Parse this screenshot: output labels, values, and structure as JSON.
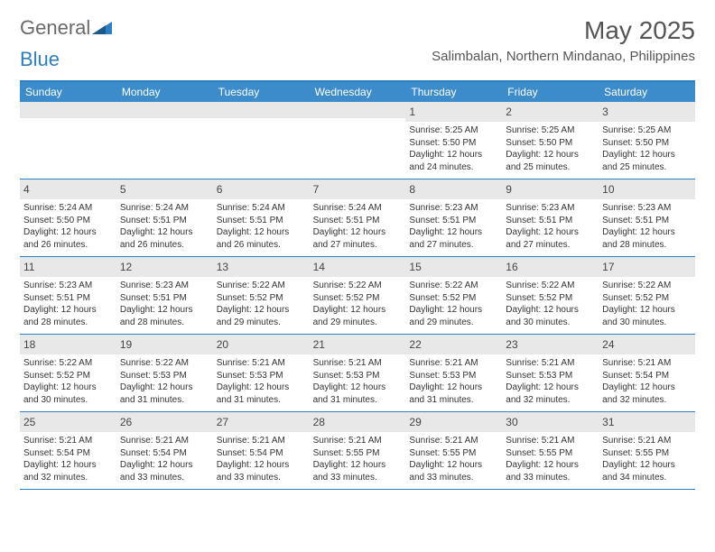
{
  "logo": {
    "text1": "General",
    "text2": "Blue"
  },
  "title": "May 2025",
  "location": "Salimbalan, Northern Mindanao, Philippines",
  "colors": {
    "header_bar": "#3c8ccc",
    "border": "#2d7fc1",
    "daynum_bg": "#e8e8e8",
    "text": "#333333",
    "title_text": "#555555"
  },
  "weekdays": [
    "Sunday",
    "Monday",
    "Tuesday",
    "Wednesday",
    "Thursday",
    "Friday",
    "Saturday"
  ],
  "weeks": [
    [
      null,
      null,
      null,
      null,
      {
        "n": "1",
        "sr": "5:25 AM",
        "ss": "5:50 PM",
        "dl": "12 hours and 24 minutes."
      },
      {
        "n": "2",
        "sr": "5:25 AM",
        "ss": "5:50 PM",
        "dl": "12 hours and 25 minutes."
      },
      {
        "n": "3",
        "sr": "5:25 AM",
        "ss": "5:50 PM",
        "dl": "12 hours and 25 minutes."
      }
    ],
    [
      {
        "n": "4",
        "sr": "5:24 AM",
        "ss": "5:50 PM",
        "dl": "12 hours and 26 minutes."
      },
      {
        "n": "5",
        "sr": "5:24 AM",
        "ss": "5:51 PM",
        "dl": "12 hours and 26 minutes."
      },
      {
        "n": "6",
        "sr": "5:24 AM",
        "ss": "5:51 PM",
        "dl": "12 hours and 26 minutes."
      },
      {
        "n": "7",
        "sr": "5:24 AM",
        "ss": "5:51 PM",
        "dl": "12 hours and 27 minutes."
      },
      {
        "n": "8",
        "sr": "5:23 AM",
        "ss": "5:51 PM",
        "dl": "12 hours and 27 minutes."
      },
      {
        "n": "9",
        "sr": "5:23 AM",
        "ss": "5:51 PM",
        "dl": "12 hours and 27 minutes."
      },
      {
        "n": "10",
        "sr": "5:23 AM",
        "ss": "5:51 PM",
        "dl": "12 hours and 28 minutes."
      }
    ],
    [
      {
        "n": "11",
        "sr": "5:23 AM",
        "ss": "5:51 PM",
        "dl": "12 hours and 28 minutes."
      },
      {
        "n": "12",
        "sr": "5:23 AM",
        "ss": "5:51 PM",
        "dl": "12 hours and 28 minutes."
      },
      {
        "n": "13",
        "sr": "5:22 AM",
        "ss": "5:52 PM",
        "dl": "12 hours and 29 minutes."
      },
      {
        "n": "14",
        "sr": "5:22 AM",
        "ss": "5:52 PM",
        "dl": "12 hours and 29 minutes."
      },
      {
        "n": "15",
        "sr": "5:22 AM",
        "ss": "5:52 PM",
        "dl": "12 hours and 29 minutes."
      },
      {
        "n": "16",
        "sr": "5:22 AM",
        "ss": "5:52 PM",
        "dl": "12 hours and 30 minutes."
      },
      {
        "n": "17",
        "sr": "5:22 AM",
        "ss": "5:52 PM",
        "dl": "12 hours and 30 minutes."
      }
    ],
    [
      {
        "n": "18",
        "sr": "5:22 AM",
        "ss": "5:52 PM",
        "dl": "12 hours and 30 minutes."
      },
      {
        "n": "19",
        "sr": "5:22 AM",
        "ss": "5:53 PM",
        "dl": "12 hours and 31 minutes."
      },
      {
        "n": "20",
        "sr": "5:21 AM",
        "ss": "5:53 PM",
        "dl": "12 hours and 31 minutes."
      },
      {
        "n": "21",
        "sr": "5:21 AM",
        "ss": "5:53 PM",
        "dl": "12 hours and 31 minutes."
      },
      {
        "n": "22",
        "sr": "5:21 AM",
        "ss": "5:53 PM",
        "dl": "12 hours and 31 minutes."
      },
      {
        "n": "23",
        "sr": "5:21 AM",
        "ss": "5:53 PM",
        "dl": "12 hours and 32 minutes."
      },
      {
        "n": "24",
        "sr": "5:21 AM",
        "ss": "5:54 PM",
        "dl": "12 hours and 32 minutes."
      }
    ],
    [
      {
        "n": "25",
        "sr": "5:21 AM",
        "ss": "5:54 PM",
        "dl": "12 hours and 32 minutes."
      },
      {
        "n": "26",
        "sr": "5:21 AM",
        "ss": "5:54 PM",
        "dl": "12 hours and 33 minutes."
      },
      {
        "n": "27",
        "sr": "5:21 AM",
        "ss": "5:54 PM",
        "dl": "12 hours and 33 minutes."
      },
      {
        "n": "28",
        "sr": "5:21 AM",
        "ss": "5:55 PM",
        "dl": "12 hours and 33 minutes."
      },
      {
        "n": "29",
        "sr": "5:21 AM",
        "ss": "5:55 PM",
        "dl": "12 hours and 33 minutes."
      },
      {
        "n": "30",
        "sr": "5:21 AM",
        "ss": "5:55 PM",
        "dl": "12 hours and 33 minutes."
      },
      {
        "n": "31",
        "sr": "5:21 AM",
        "ss": "5:55 PM",
        "dl": "12 hours and 34 minutes."
      }
    ]
  ],
  "labels": {
    "sunrise": "Sunrise:",
    "sunset": "Sunset:",
    "daylight": "Daylight:"
  }
}
